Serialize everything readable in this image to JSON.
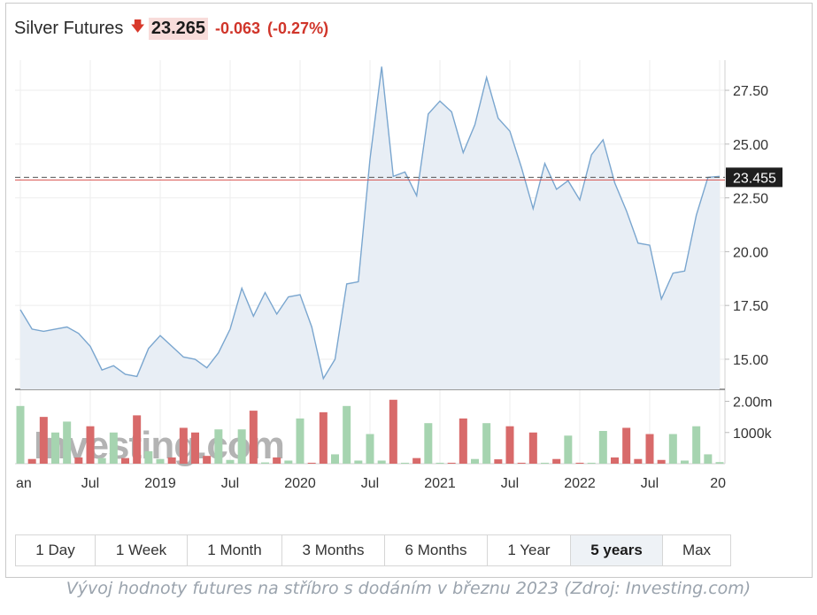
{
  "header": {
    "name": "Silver Futures",
    "price": "23.265",
    "change": "-0.063",
    "change_pct": "(-0.27%)"
  },
  "chart_data": {
    "type": "area",
    "title": "Silver Futures",
    "x_labels": [
      "an",
      "Jul",
      "2019",
      "Jul",
      "2020",
      "Jul",
      "2021",
      "Jul",
      "2022",
      "Jul",
      "20"
    ],
    "y_ticks": [
      "27.50",
      "25.00",
      "22.50",
      "20.00",
      "17.50",
      "15.00"
    ],
    "ylim": [
      13.6,
      28.9
    ],
    "last_price_label": "23.455",
    "last_price": 23.455,
    "ref_line": 23.33,
    "price_series": {
      "x": [
        "2018-01",
        "2018-02",
        "2018-03",
        "2018-04",
        "2018-05",
        "2018-06",
        "2018-07",
        "2018-08",
        "2018-09",
        "2018-10",
        "2018-11",
        "2018-12",
        "2019-01",
        "2019-02",
        "2019-03",
        "2019-04",
        "2019-05",
        "2019-06",
        "2019-07",
        "2019-08",
        "2019-09",
        "2019-10",
        "2019-11",
        "2019-12",
        "2020-01",
        "2020-02",
        "2020-03",
        "2020-04",
        "2020-05",
        "2020-06",
        "2020-07",
        "2020-08",
        "2020-09",
        "2020-10",
        "2020-11",
        "2020-12",
        "2021-01",
        "2021-02",
        "2021-03",
        "2021-04",
        "2021-05",
        "2021-06",
        "2021-07",
        "2021-08",
        "2021-09",
        "2021-10",
        "2021-11",
        "2021-12",
        "2022-01",
        "2022-02",
        "2022-03",
        "2022-04",
        "2022-05",
        "2022-06",
        "2022-07",
        "2022-08",
        "2022-09",
        "2022-10",
        "2022-11",
        "2022-12",
        "2023-01"
      ],
      "values": [
        17.3,
        16.4,
        16.3,
        16.4,
        16.5,
        16.2,
        15.6,
        14.5,
        14.7,
        14.3,
        14.2,
        15.5,
        16.1,
        15.6,
        15.1,
        15.0,
        14.6,
        15.3,
        16.4,
        18.3,
        17.0,
        18.1,
        17.1,
        17.9,
        18.0,
        16.5,
        14.1,
        15.0,
        18.5,
        18.6,
        24.3,
        28.6,
        23.5,
        23.7,
        22.6,
        26.4,
        27.0,
        26.5,
        24.6,
        25.9,
        28.1,
        26.2,
        25.6,
        23.9,
        22.0,
        24.1,
        22.9,
        23.3,
        22.4,
        24.5,
        25.2,
        23.2,
        21.9,
        20.4,
        20.3,
        17.8,
        19.0,
        19.1,
        21.7,
        23.455,
        23.5
      ]
    },
    "volume_series": {
      "ticks": [
        "2.00m",
        "1000k"
      ],
      "ylim": [
        0,
        2100000
      ],
      "values": [
        1850000,
        150000,
        1500000,
        1000000,
        1350000,
        200000,
        1200000,
        180000,
        1000000,
        180000,
        1550000,
        400000,
        150000,
        200000,
        1150000,
        1000000,
        250000,
        1100000,
        120000,
        1100000,
        1700000,
        40000,
        200000,
        100000,
        1450000,
        30000,
        1650000,
        300000,
        1850000,
        100000,
        950000,
        100000,
        2050000,
        30000,
        180000,
        1300000,
        30000,
        30000,
        1450000,
        150000,
        1300000,
        140000,
        1200000,
        30000,
        1000000,
        30000,
        150000,
        900000,
        30000,
        30000,
        1050000,
        200000,
        1150000,
        150000,
        950000,
        120000,
        950000,
        100000,
        1200000,
        300000,
        50000
      ],
      "direction": [
        "up",
        "down",
        "down",
        "up",
        "up",
        "down",
        "down",
        "up",
        "up",
        "down",
        "down",
        "up",
        "up",
        "down",
        "down",
        "down",
        "down",
        "up",
        "up",
        "up",
        "down",
        "up",
        "down",
        "up",
        "up",
        "down",
        "down",
        "up",
        "up",
        "up",
        "up",
        "up",
        "down",
        "up",
        "down",
        "up",
        "up",
        "down",
        "down",
        "up",
        "up",
        "down",
        "down",
        "down",
        "down",
        "up",
        "down",
        "up",
        "down",
        "up",
        "up",
        "down",
        "down",
        "down",
        "down",
        "down",
        "up",
        "up",
        "up",
        "up",
        "up"
      ]
    }
  },
  "watermark": "Investing.com",
  "colors": {
    "line": "#7aa6cf",
    "area": "#e8eef5",
    "up_volume": "#a6d4b0",
    "down_volume": "#d86a6a",
    "ref_line": "#d9534f",
    "label_bg": "#1e1e1e"
  },
  "range_tabs": [
    {
      "label": "1 Day",
      "active": false
    },
    {
      "label": "1 Week",
      "active": false
    },
    {
      "label": "1 Month",
      "active": false
    },
    {
      "label": "3 Months",
      "active": false
    },
    {
      "label": "6 Months",
      "active": false
    },
    {
      "label": "1 Year",
      "active": false
    },
    {
      "label": "5 years",
      "active": true
    },
    {
      "label": "Max",
      "active": false
    }
  ],
  "caption": "Vývoj hodnoty futures na stříbro s dodáním v březnu 2023 (Zdroj: Investing.com)"
}
